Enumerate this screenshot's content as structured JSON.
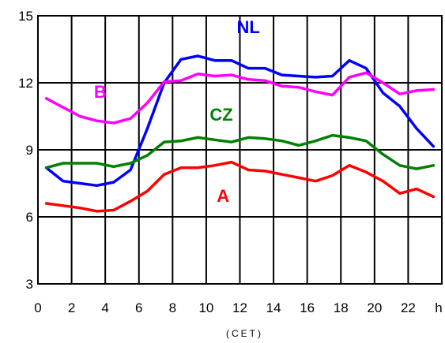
{
  "chart_data": {
    "type": "line",
    "title": "",
    "xlabel": "(CET)",
    "ylabel": "",
    "x_unit": "h",
    "xlim": [
      0,
      24
    ],
    "ylim": [
      3,
      15
    ],
    "grid": true,
    "x_ticks": [
      0,
      2,
      4,
      6,
      8,
      10,
      12,
      14,
      16,
      18,
      20,
      22
    ],
    "x_tick_labels": [
      "0",
      "2",
      "4",
      "6",
      "8",
      "10",
      "12",
      "14",
      "16",
      "18",
      "20",
      "22"
    ],
    "y_ticks": [
      3,
      6,
      9,
      12,
      15
    ],
    "y_tick_labels": [
      "3",
      "6",
      "9",
      "12",
      "15"
    ],
    "x": [
      0.5,
      1.5,
      2.5,
      3.5,
      4.5,
      5.5,
      6.5,
      7.5,
      8.5,
      9.5,
      10.5,
      11.5,
      12.5,
      13.5,
      14.5,
      15.5,
      16.5,
      17.5,
      18.5,
      19.5,
      20.5,
      21.5,
      22.5,
      23.5
    ],
    "series": [
      {
        "name": "NL",
        "color": "#0000ff",
        "values": [
          8.2,
          7.6,
          7.5,
          7.4,
          7.55,
          8.1,
          9.95,
          12.0,
          13.05,
          13.2,
          13.0,
          13.0,
          12.65,
          12.65,
          12.35,
          12.3,
          12.25,
          12.3,
          13.0,
          12.65,
          11.55,
          10.95,
          9.95,
          9.15
        ]
      },
      {
        "name": "B",
        "color": "#ff00ff",
        "values": [
          11.3,
          10.9,
          10.5,
          10.3,
          10.2,
          10.4,
          11.1,
          12.05,
          12.1,
          12.4,
          12.3,
          12.35,
          12.15,
          12.1,
          11.85,
          11.8,
          11.6,
          11.45,
          12.25,
          12.45,
          12.0,
          11.5,
          11.65,
          11.7
        ]
      },
      {
        "name": "CZ",
        "color": "#008000",
        "values": [
          8.2,
          8.4,
          8.4,
          8.4,
          8.25,
          8.4,
          8.75,
          9.35,
          9.4,
          9.55,
          9.45,
          9.35,
          9.55,
          9.5,
          9.4,
          9.2,
          9.4,
          9.65,
          9.55,
          9.4,
          8.8,
          8.3,
          8.15,
          8.3
        ]
      },
      {
        "name": "A",
        "color": "#ff0000",
        "values": [
          6.6,
          6.5,
          6.4,
          6.25,
          6.3,
          6.7,
          7.15,
          7.9,
          8.2,
          8.2,
          8.3,
          8.45,
          8.1,
          8.05,
          7.9,
          7.75,
          7.6,
          7.85,
          8.3,
          8.0,
          7.6,
          7.05,
          7.25,
          6.9
        ]
      }
    ]
  }
}
